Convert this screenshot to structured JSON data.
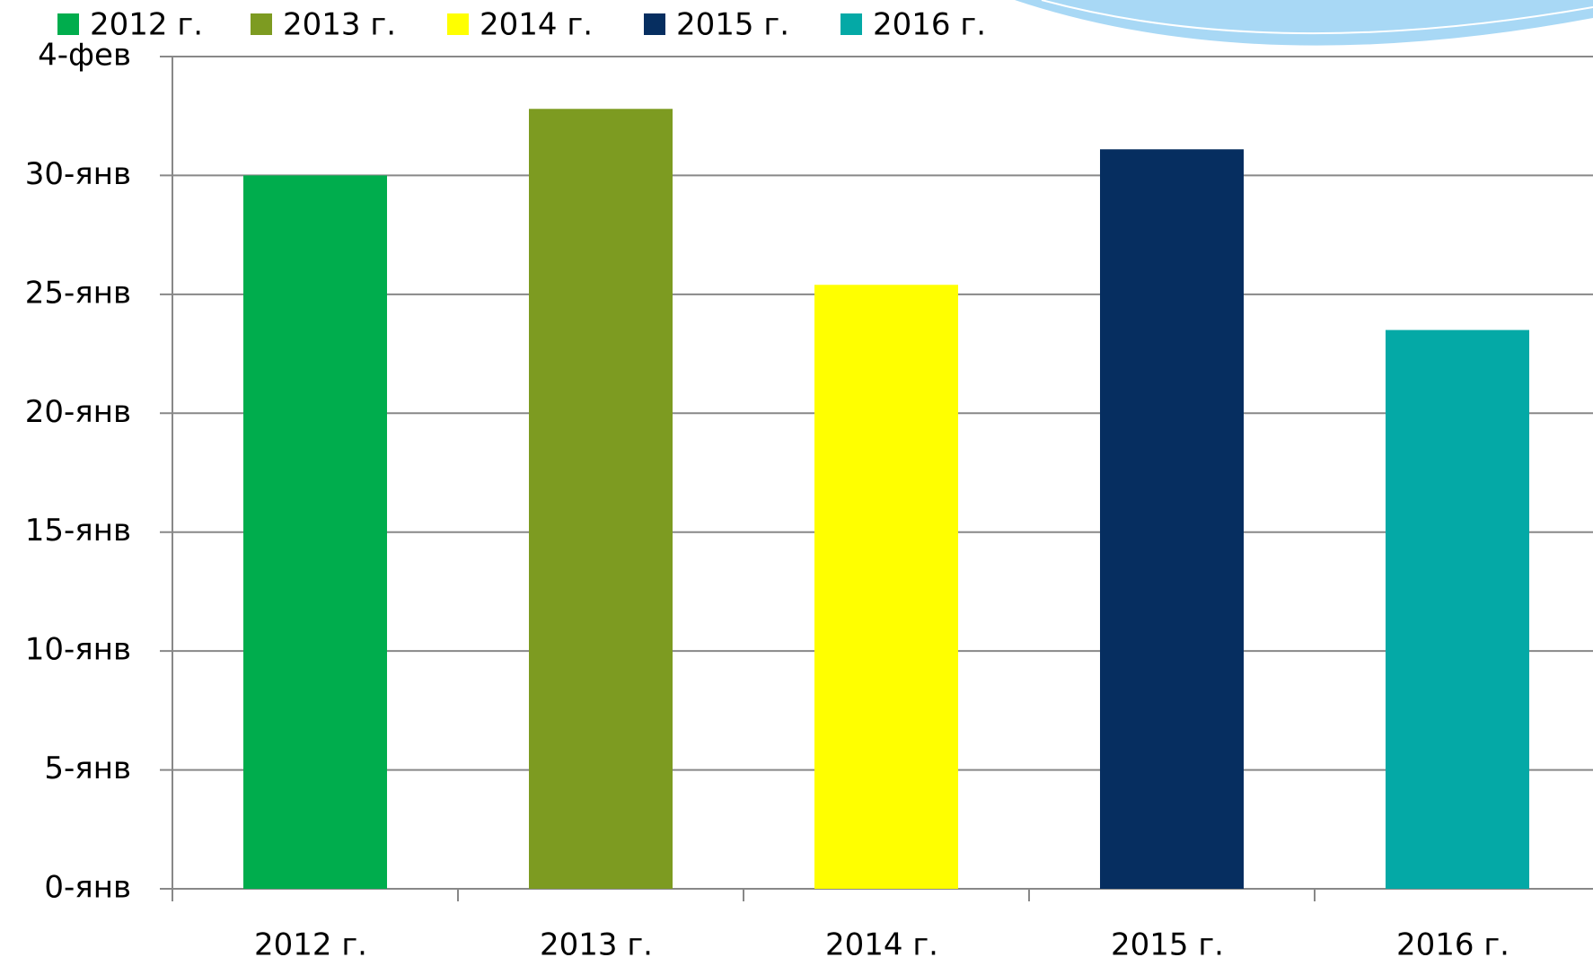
{
  "chart_data": {
    "type": "bar",
    "categories": [
      "2012 г.",
      "2013 г.",
      "2014 г.",
      "2015 г.",
      "2016 г."
    ],
    "values": [
      30,
      32.8,
      25.4,
      31.1,
      23.5
    ],
    "colors": [
      "#00ad4d",
      "#7d9b21",
      "#ffff00",
      "#062e60",
      "#04a9a6"
    ],
    "ylim": [
      0,
      35
    ],
    "yticks": [
      {
        "value": 0,
        "label": "0-янв"
      },
      {
        "value": 5,
        "label": "5-янв"
      },
      {
        "value": 10,
        "label": "10-янв"
      },
      {
        "value": 15,
        "label": "15-янв"
      },
      {
        "value": 20,
        "label": "20-янв"
      },
      {
        "value": 25,
        "label": "25-янв"
      },
      {
        "value": 30,
        "label": "30-янв"
      },
      {
        "value": 35,
        "label": "4-фев"
      }
    ],
    "grid": true
  }
}
